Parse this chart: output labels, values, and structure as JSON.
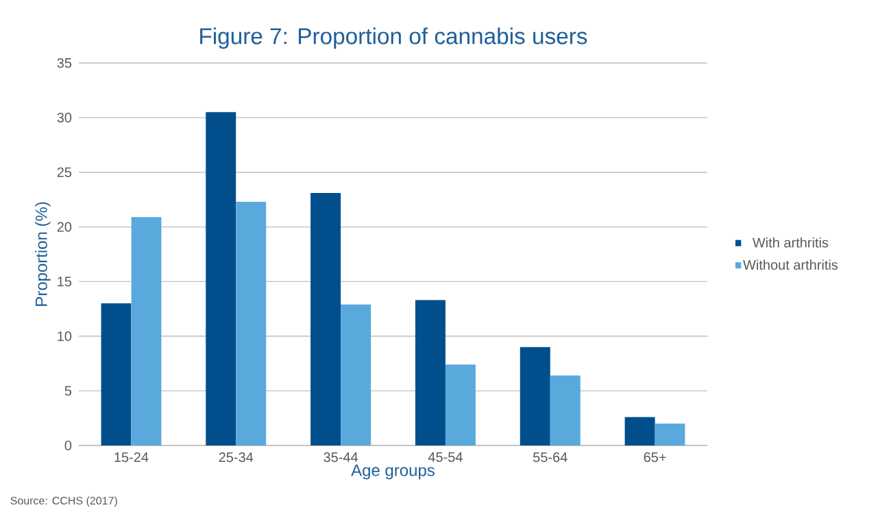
{
  "chart_data": {
    "type": "bar",
    "title": "Figure 7: Proportion of cannabis users",
    "xlabel": "Age groups",
    "ylabel": "Proportion (%)",
    "categories": [
      "15-24",
      "25-34",
      "35-44",
      "45-54",
      "55-64",
      "65+"
    ],
    "series": [
      {
        "name": "With arthritis",
        "color": "#004f8c",
        "values": [
          13.0,
          30.5,
          23.1,
          13.3,
          9.0,
          2.6
        ]
      },
      {
        "name": "Without arthritis",
        "color": "#5aa9dd",
        "values": [
          20.9,
          22.3,
          12.9,
          7.4,
          6.4,
          2.0
        ]
      }
    ],
    "ylim": [
      0,
      35
    ],
    "yticks": [
      0,
      5,
      10,
      15,
      20,
      25,
      30,
      35
    ],
    "grid": "y",
    "legend": "right",
    "annotations": [
      "Source: CCHS (2017)"
    ]
  }
}
